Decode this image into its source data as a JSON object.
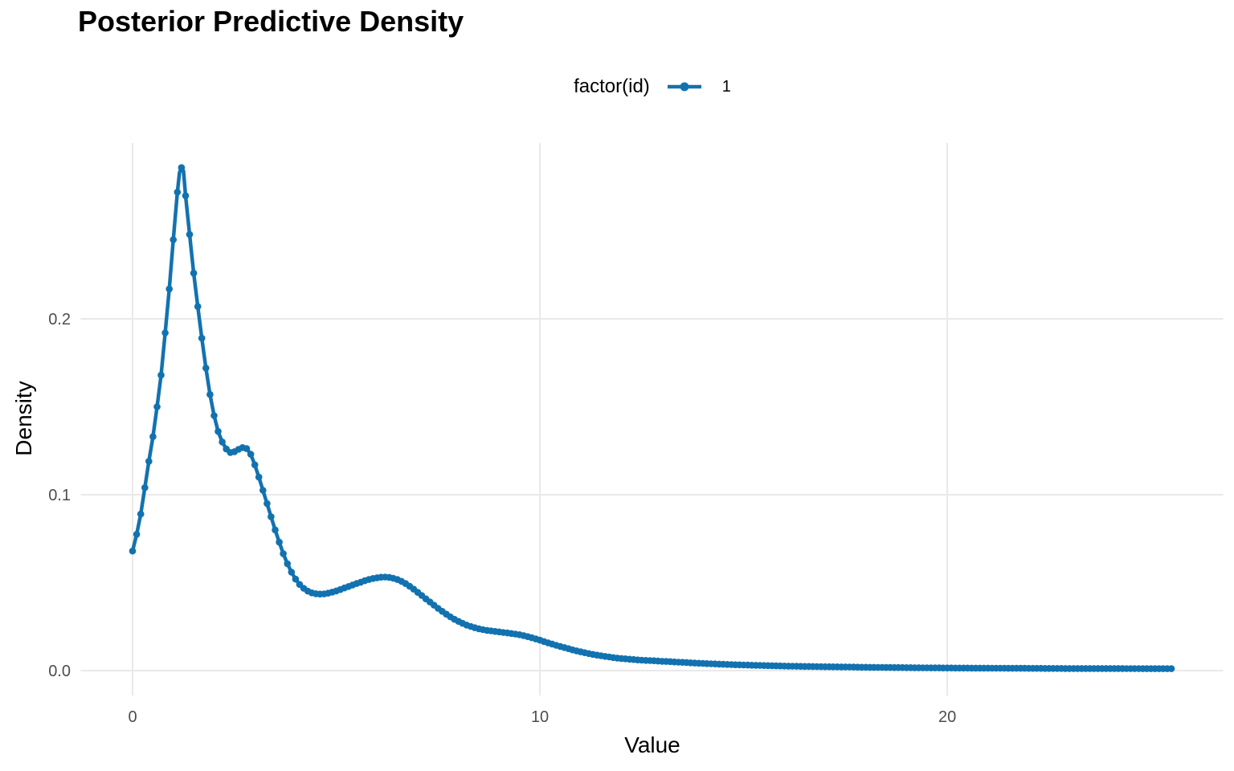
{
  "chart": {
    "title": "Posterior Predictive Density",
    "xlabel": "Value",
    "ylabel": "Density"
  },
  "legend": {
    "title": "factor(id)",
    "entries": [
      "1"
    ],
    "position": "top"
  },
  "colors": {
    "series_blue": "#1272b0",
    "gridline": "#e9e9e9",
    "tick_text": "#4d4d4d",
    "title_text": "#000000"
  },
  "chart_data": {
    "type": "line",
    "title": "Posterior Predictive Density",
    "xlabel": "Value",
    "ylabel": "Density",
    "legend_title": "factor(id)",
    "legend_position": "top",
    "grid": "major-only",
    "marker": "circle",
    "marker_step": 0.1,
    "x_ticks": [
      {
        "v": 0,
        "label": "0"
      },
      {
        "v": 10,
        "label": "10"
      },
      {
        "v": 20,
        "label": "20"
      }
    ],
    "y_ticks": [
      {
        "v": 0,
        "label": "0.0"
      },
      {
        "v": 0.1,
        "label": "0.1"
      },
      {
        "v": 0.2,
        "label": "0.2"
      }
    ],
    "xlim": [
      -1.275,
      26.775
    ],
    "ylim": [
      -0.01415,
      0.3
    ],
    "series": [
      {
        "name": "1",
        "color": "#1272b0",
        "points": [
          [
            0.0,
            0.068
          ],
          [
            0.1,
            0.0775
          ],
          [
            0.2,
            0.089
          ],
          [
            0.3,
            0.104
          ],
          [
            0.4,
            0.119
          ],
          [
            0.5,
            0.133
          ],
          [
            0.6,
            0.15
          ],
          [
            0.7,
            0.168
          ],
          [
            0.8,
            0.192
          ],
          [
            0.9,
            0.217
          ],
          [
            1.0,
            0.245
          ],
          [
            1.1,
            0.272
          ],
          [
            1.15,
            0.283
          ],
          [
            1.2,
            0.286
          ],
          [
            1.25,
            0.284
          ],
          [
            1.3,
            0.27
          ],
          [
            1.4,
            0.248
          ],
          [
            1.5,
            0.226
          ],
          [
            1.6,
            0.207
          ],
          [
            1.7,
            0.189
          ],
          [
            1.8,
            0.172
          ],
          [
            1.9,
            0.157
          ],
          [
            2.0,
            0.145
          ],
          [
            2.1,
            0.136
          ],
          [
            2.2,
            0.13
          ],
          [
            2.3,
            0.126
          ],
          [
            2.4,
            0.124
          ],
          [
            2.5,
            0.1245
          ],
          [
            2.6,
            0.1258
          ],
          [
            2.7,
            0.1268
          ],
          [
            2.8,
            0.1262
          ],
          [
            2.9,
            0.123
          ],
          [
            3.0,
            0.117
          ],
          [
            3.1,
            0.11
          ],
          [
            3.2,
            0.1025
          ],
          [
            3.3,
            0.095
          ],
          [
            3.4,
            0.0875
          ],
          [
            3.5,
            0.08
          ],
          [
            3.6,
            0.073
          ],
          [
            3.7,
            0.0665
          ],
          [
            3.8,
            0.0608
          ],
          [
            3.9,
            0.056
          ],
          [
            4.0,
            0.052
          ],
          [
            4.1,
            0.049
          ],
          [
            4.2,
            0.0468
          ],
          [
            4.3,
            0.0452
          ],
          [
            4.4,
            0.0442
          ],
          [
            4.5,
            0.0437
          ],
          [
            4.6,
            0.0435
          ],
          [
            4.7,
            0.0436
          ],
          [
            4.8,
            0.044
          ],
          [
            4.9,
            0.0446
          ],
          [
            5.0,
            0.0453
          ],
          [
            5.1,
            0.0461
          ],
          [
            5.2,
            0.047
          ],
          [
            5.3,
            0.0478
          ],
          [
            5.4,
            0.0487
          ],
          [
            5.5,
            0.0495
          ],
          [
            5.6,
            0.0503
          ],
          [
            5.7,
            0.0511
          ],
          [
            5.8,
            0.0518
          ],
          [
            5.9,
            0.0524
          ],
          [
            6.0,
            0.0528
          ],
          [
            6.1,
            0.0531
          ],
          [
            6.2,
            0.0532
          ],
          [
            6.3,
            0.053
          ],
          [
            6.4,
            0.0525
          ],
          [
            6.5,
            0.0518
          ],
          [
            6.6,
            0.0508
          ],
          [
            6.7,
            0.0495
          ],
          [
            6.8,
            0.048
          ],
          [
            6.9,
            0.0463
          ],
          [
            7.0,
            0.0445
          ],
          [
            7.1,
            0.0427
          ],
          [
            7.2,
            0.0408
          ],
          [
            7.3,
            0.039
          ],
          [
            7.4,
            0.0372
          ],
          [
            7.5,
            0.0354
          ],
          [
            7.6,
            0.0337
          ],
          [
            7.7,
            0.0321
          ],
          [
            7.8,
            0.0306
          ],
          [
            7.9,
            0.0292
          ],
          [
            8.0,
            0.028
          ],
          [
            8.1,
            0.0269
          ],
          [
            8.2,
            0.0259
          ],
          [
            8.3,
            0.0251
          ],
          [
            8.4,
            0.0244
          ],
          [
            8.5,
            0.0238
          ],
          [
            8.6,
            0.0233
          ],
          [
            8.7,
            0.0229
          ],
          [
            8.8,
            0.0226
          ],
          [
            8.9,
            0.0223
          ],
          [
            9.0,
            0.022
          ],
          [
            9.1,
            0.0217
          ],
          [
            9.2,
            0.0214
          ],
          [
            9.3,
            0.0211
          ],
          [
            9.4,
            0.0208
          ],
          [
            9.5,
            0.0204
          ],
          [
            9.6,
            0.0199
          ],
          [
            9.7,
            0.0193
          ],
          [
            9.8,
            0.0187
          ],
          [
            9.9,
            0.018
          ],
          [
            10.0,
            0.0173
          ],
          [
            10.2,
            0.0158
          ],
          [
            10.4,
            0.0144
          ],
          [
            10.6,
            0.0131
          ],
          [
            10.8,
            0.0118
          ],
          [
            11.0,
            0.0107
          ],
          [
            11.2,
            0.0097
          ],
          [
            11.4,
            0.0088
          ],
          [
            11.6,
            0.0081
          ],
          [
            11.8,
            0.0074
          ],
          [
            12.0,
            0.0069
          ],
          [
            12.2,
            0.0065
          ],
          [
            12.4,
            0.0061
          ],
          [
            12.6,
            0.0058
          ],
          [
            12.8,
            0.0056
          ],
          [
            13.0,
            0.0053
          ],
          [
            13.2,
            0.0051
          ],
          [
            13.4,
            0.0048
          ],
          [
            13.6,
            0.0046
          ],
          [
            13.8,
            0.0043
          ],
          [
            14.0,
            0.0041
          ],
          [
            14.5,
            0.0036
          ],
          [
            15.0,
            0.0032
          ],
          [
            15.5,
            0.0029
          ],
          [
            16.0,
            0.0026
          ],
          [
            16.5,
            0.0024
          ],
          [
            17.0,
            0.0022
          ],
          [
            17.5,
            0.0021
          ],
          [
            18.0,
            0.0019
          ],
          [
            18.5,
            0.0018
          ],
          [
            19.0,
            0.0017
          ],
          [
            19.5,
            0.0016
          ],
          [
            20.0,
            0.0015
          ],
          [
            21.0,
            0.0014
          ],
          [
            22.0,
            0.0013
          ],
          [
            23.0,
            0.0012
          ],
          [
            24.0,
            0.0012
          ],
          [
            25.0,
            0.0011
          ],
          [
            25.5,
            0.0011
          ]
        ]
      }
    ]
  }
}
